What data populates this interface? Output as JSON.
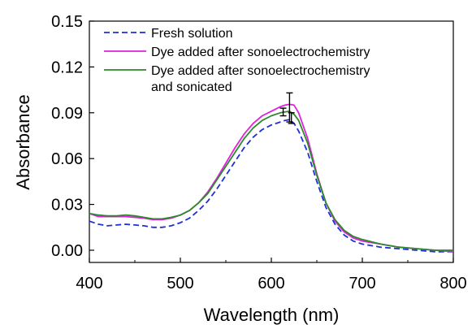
{
  "chart_data": {
    "type": "line",
    "xlabel": "Wavelength (nm)",
    "ylabel": "Absorbance",
    "xlim": [
      400,
      800
    ],
    "ylim": [
      -0.008,
      0.15
    ],
    "xticks": [
      400,
      500,
      600,
      700,
      800
    ],
    "xtick_labels": [
      "400",
      "500",
      "600",
      "700",
      "800"
    ],
    "yticks": [
      0.0,
      0.03,
      0.06,
      0.09,
      0.12,
      0.15
    ],
    "ytick_labels": [
      "0.00",
      "0.03",
      "0.06",
      "0.09",
      "0.12",
      "0.15"
    ],
    "grid": false,
    "legend_position": "top-left",
    "series": [
      {
        "name": "Fresh solution",
        "color": "#1f2fd6",
        "style": "dashed",
        "x": [
          400,
          410,
          420,
          430,
          440,
          450,
          460,
          470,
          480,
          490,
          500,
          510,
          520,
          530,
          540,
          550,
          560,
          570,
          580,
          590,
          600,
          610,
          615,
          620,
          625,
          630,
          640,
          650,
          660,
          670,
          680,
          690,
          700,
          720,
          740,
          760,
          780,
          800
        ],
        "y": [
          0.019,
          0.017,
          0.016,
          0.0165,
          0.017,
          0.0165,
          0.016,
          0.015,
          0.015,
          0.016,
          0.018,
          0.021,
          0.026,
          0.032,
          0.04,
          0.049,
          0.058,
          0.067,
          0.074,
          0.079,
          0.082,
          0.084,
          0.085,
          0.0855,
          0.083,
          0.078,
          0.064,
          0.045,
          0.028,
          0.017,
          0.01,
          0.006,
          0.004,
          0.002,
          0.001,
          0.0,
          -0.001,
          -0.001
        ]
      },
      {
        "name": "Dye added after sonoelectrochemistry",
        "color": "#e020e0",
        "style": "solid",
        "x": [
          400,
          410,
          420,
          430,
          440,
          450,
          460,
          470,
          480,
          490,
          500,
          510,
          520,
          530,
          540,
          550,
          560,
          570,
          580,
          590,
          600,
          610,
          615,
          620,
          625,
          630,
          640,
          650,
          660,
          670,
          680,
          690,
          700,
          720,
          740,
          760,
          780,
          800
        ],
        "y": [
          0.024,
          0.022,
          0.022,
          0.022,
          0.022,
          0.0215,
          0.021,
          0.02,
          0.02,
          0.021,
          0.023,
          0.026,
          0.031,
          0.038,
          0.047,
          0.057,
          0.067,
          0.076,
          0.083,
          0.088,
          0.091,
          0.094,
          0.095,
          0.0955,
          0.095,
          0.09,
          0.073,
          0.05,
          0.031,
          0.019,
          0.012,
          0.008,
          0.006,
          0.004,
          0.002,
          0.001,
          0.0,
          -0.001
        ]
      },
      {
        "name": "Dye added after sonoelectrochemistry and sonicated",
        "legend_lines": [
          "Dye added after sonoelectrochemistry",
          "and sonicated"
        ],
        "color": "#2a8a2a",
        "style": "solid",
        "x": [
          400,
          410,
          420,
          430,
          440,
          450,
          460,
          470,
          480,
          490,
          500,
          510,
          520,
          530,
          540,
          550,
          560,
          570,
          580,
          590,
          600,
          610,
          615,
          620,
          625,
          630,
          640,
          650,
          660,
          670,
          680,
          690,
          700,
          720,
          740,
          760,
          780,
          800
        ],
        "y": [
          0.024,
          0.023,
          0.0225,
          0.0225,
          0.023,
          0.0225,
          0.0215,
          0.0205,
          0.0205,
          0.0215,
          0.023,
          0.026,
          0.031,
          0.037,
          0.046,
          0.055,
          0.064,
          0.073,
          0.08,
          0.085,
          0.088,
          0.09,
          0.0905,
          0.091,
          0.089,
          0.085,
          0.07,
          0.049,
          0.031,
          0.02,
          0.013,
          0.009,
          0.007,
          0.004,
          0.002,
          0.001,
          0.0,
          0.0
        ]
      }
    ],
    "error_bars": [
      {
        "x": 613,
        "y": 0.0905,
        "err": 0.0025
      },
      {
        "x": 620,
        "y": 0.0935,
        "err": 0.0095
      },
      {
        "x": 622,
        "y": 0.0865,
        "err": 0.0035
      }
    ]
  }
}
